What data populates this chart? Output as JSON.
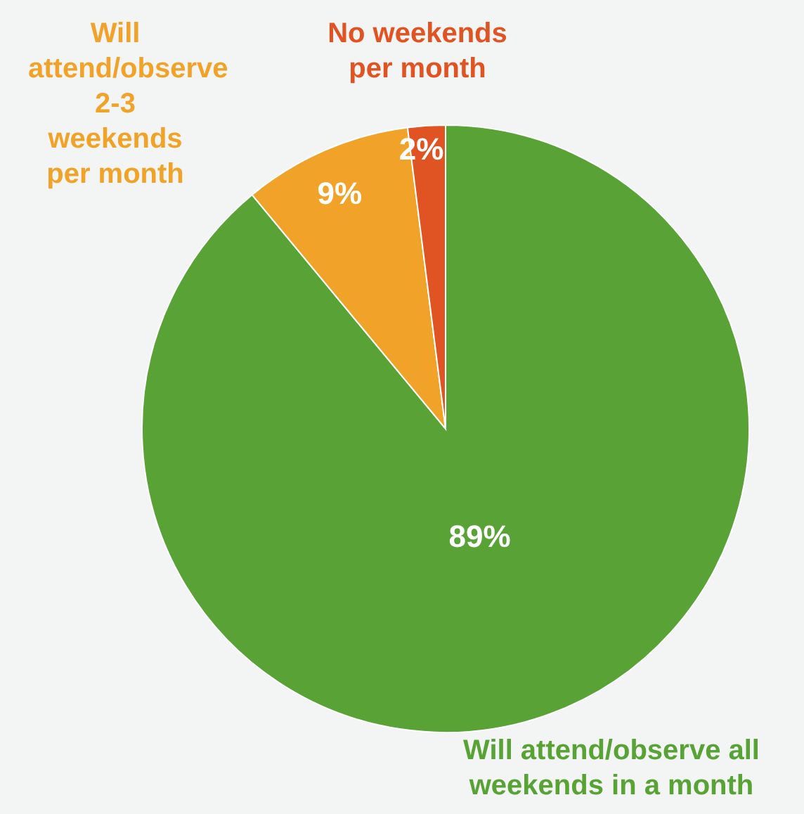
{
  "chart_data": {
    "type": "pie",
    "categories": [
      "Will attend/observe all weekends in a month",
      "Will attend/observe 2-3 weekends per month",
      "No weekends per month"
    ],
    "values": [
      89,
      9,
      2
    ],
    "colors": [
      "#58a236",
      "#f0a328",
      "#e05423"
    ],
    "value_labels": [
      "89%",
      "9%",
      "2%"
    ],
    "legend": false
  }
}
